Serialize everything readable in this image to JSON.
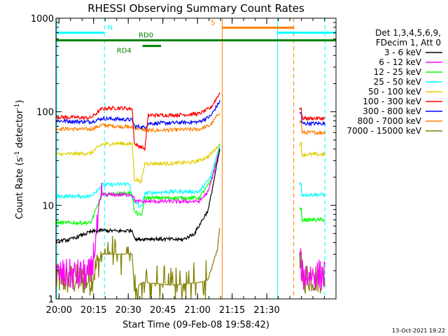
{
  "chart_data": {
    "type": "line",
    "title": "RHESSI Observing Summary Count Rates",
    "xlabel": "Start Time (09-Feb-08 19:58:42)",
    "ylabel": "Count Rate (s",
    "ylabel_sup1": "-1",
    "ylabel_mid": " detector",
    "ylabel_sup2": "-1",
    "ylabel_end": ")",
    "yscale": "log",
    "ylim": [
      1,
      1000
    ],
    "xlim": [
      0,
      121.3
    ],
    "x_unit": "minutes after 19:58:42",
    "x_ticks": [
      {
        "x": 1.3,
        "label": "20:00"
      },
      {
        "x": 16.3,
        "label": "20:15"
      },
      {
        "x": 31.3,
        "label": "20:30"
      },
      {
        "x": 46.3,
        "label": "20:45"
      },
      {
        "x": 61.3,
        "label": "21:00"
      },
      {
        "x": 76.3,
        "label": "21:15"
      },
      {
        "x": 91.3,
        "label": "21:30"
      }
    ],
    "y_ticks": [
      {
        "y": 1,
        "label": "1"
      },
      {
        "y": 10,
        "label": "10"
      },
      {
        "y": 100,
        "label": "100"
      },
      {
        "y": 1000,
        "label": "1000"
      }
    ],
    "grid": false,
    "legend_header": [
      "Det 1,3,4,5,6,9,",
      "FDecim 1, Att 0"
    ],
    "legend_position": "right",
    "series": [
      {
        "name": "3 - 6 keV",
        "color": "#000000",
        "points": [
          [
            0,
            4.1
          ],
          [
            6,
            4.3
          ],
          [
            15,
            5.2
          ],
          [
            20,
            5.4
          ],
          [
            27,
            5.3
          ],
          [
            33,
            5.4
          ],
          [
            34.5,
            4.3
          ],
          [
            40,
            4.4
          ],
          [
            55,
            4.3
          ],
          [
            60,
            5
          ],
          [
            66,
            9
          ],
          [
            71,
            40
          ]
        ]
      },
      {
        "name": "6 - 12 keV",
        "color": "#ff00ff",
        "points": [
          [
            0,
            1.8
          ],
          [
            15,
            1.8
          ],
          [
            20,
            13
          ],
          [
            33,
            13
          ],
          [
            34.5,
            11
          ],
          [
            45,
            11
          ],
          [
            55,
            11
          ],
          [
            62,
            11
          ],
          [
            66,
            14
          ],
          [
            71,
            40
          ]
        ]
      },
      {
        "name": "12 - 25 keV",
        "color": "#00ff00",
        "points": [
          [
            0,
            6.5
          ],
          [
            15,
            6.5
          ],
          [
            20,
            13
          ],
          [
            33,
            13.5
          ],
          [
            34,
            8.5
          ],
          [
            37,
            7.7
          ],
          [
            38.5,
            12
          ],
          [
            50,
            12
          ],
          [
            62,
            12
          ],
          [
            67,
            18
          ],
          [
            71,
            40
          ]
        ]
      },
      {
        "name": "25 - 50 keV",
        "color": "#00ffff",
        "points": [
          [
            0,
            12.5
          ],
          [
            15,
            12.5
          ],
          [
            20,
            16.5
          ],
          [
            32,
            17
          ],
          [
            33,
            11.5
          ],
          [
            37,
            9.5
          ],
          [
            38.5,
            13.5
          ],
          [
            50,
            14
          ],
          [
            62,
            14
          ],
          [
            67,
            20
          ],
          [
            71,
            45
          ]
        ]
      },
      {
        "name": "50 - 100 keV",
        "color": "#e0d000",
        "points": [
          [
            0,
            35
          ],
          [
            15,
            36
          ],
          [
            20,
            45
          ],
          [
            27,
            46
          ],
          [
            33,
            45
          ],
          [
            34,
            19
          ],
          [
            37,
            18
          ],
          [
            38.5,
            28
          ],
          [
            50,
            28
          ],
          [
            60,
            29
          ],
          [
            66,
            33
          ],
          [
            71,
            45
          ]
        ]
      },
      {
        "name": "100 - 300 keV",
        "color": "#ff0000",
        "points": [
          [
            0,
            88
          ],
          [
            15,
            86
          ],
          [
            20,
            108
          ],
          [
            27,
            110
          ],
          [
            33,
            108
          ],
          [
            34,
            45
          ],
          [
            37,
            42
          ],
          [
            38.5,
            40
          ],
          [
            40,
            92
          ],
          [
            50,
            92
          ],
          [
            62,
            95
          ],
          [
            67,
            110
          ],
          [
            71,
            160
          ]
        ]
      },
      {
        "name": "300 - 800 keV",
        "color": "#0000ff",
        "points": [
          [
            0,
            80
          ],
          [
            15,
            78
          ],
          [
            20,
            85
          ],
          [
            33,
            82
          ],
          [
            34,
            70
          ],
          [
            38.5,
            68
          ],
          [
            40,
            75
          ],
          [
            50,
            76
          ],
          [
            62,
            78
          ],
          [
            67,
            90
          ],
          [
            71,
            130
          ]
        ]
      },
      {
        "name": "800 - 7000 keV",
        "color": "#ff8000",
        "points": [
          [
            0,
            66
          ],
          [
            15,
            65
          ],
          [
            20,
            72
          ],
          [
            27,
            70
          ],
          [
            33,
            68
          ],
          [
            37,
            65
          ],
          [
            40,
            63
          ],
          [
            50,
            64
          ],
          [
            62,
            65
          ],
          [
            67,
            72
          ],
          [
            71,
            100
          ]
        ]
      },
      {
        "name": "7000 - 15000 keV",
        "color": "#808000",
        "points": [
          [
            0,
            1.6
          ],
          [
            15,
            1.6
          ],
          [
            20,
            3
          ],
          [
            27,
            3
          ],
          [
            33,
            3
          ],
          [
            34,
            1.2
          ],
          [
            37,
            1.5
          ],
          [
            38.5,
            1.5
          ],
          [
            50,
            1.4
          ],
          [
            62,
            1.5
          ],
          [
            66,
            1.6
          ],
          [
            70,
            3.5
          ],
          [
            71,
            6
          ]
        ]
      }
    ],
    "segment2": {
      "x_start": 105.5,
      "x_end": 116.5,
      "ratios": {
        "3 - 6 keV": null,
        "6 - 12 keV": 1.8,
        "12 - 25 keV": 7,
        "25 - 50 keV": 13,
        "50 - 100 keV": 35,
        "100 - 300 keV": 85,
        "300 - 800 keV": 75,
        "800 - 7000 keV": 60,
        "7000 - 15000 keV": 1.7
      }
    },
    "flag_bars": [
      {
        "label": "N",
        "color": "#00ffff",
        "y": 700,
        "segments": [
          [
            0,
            21
          ],
          [
            96,
            121.3
          ]
        ],
        "label_x": 23.5
      },
      {
        "label": "S",
        "color": "#ff8000",
        "y": 790,
        "segments": [
          [
            72,
            103
          ]
        ],
        "label_x": 68
      },
      {
        "label": "RD0",
        "color": "#008000",
        "y": 580,
        "segments": [
          [
            0,
            121.3
          ]
        ],
        "label_x": 39
      },
      {
        "label": "RD4",
        "color": "#008000",
        "y": 505,
        "segments": [
          [
            37.5,
            45.5
          ]
        ],
        "label_x": 29.5
      }
    ],
    "vertical_markers": [
      {
        "x": 0.3,
        "style": "solid",
        "color": "#00ffff"
      },
      {
        "x": 21,
        "style": "dashed",
        "color": "#00ffff"
      },
      {
        "x": 72,
        "style": "solid",
        "color": "#ff8000"
      },
      {
        "x": 96,
        "style": "solid",
        "color": "#00ffff"
      },
      {
        "x": 103,
        "style": "dashed",
        "color": "#ff8000"
      },
      {
        "x": 116.5,
        "style": "dashed",
        "color": "#00ffff"
      }
    ]
  },
  "footer": {
    "timestamp": "13-Oct-2021 19:22"
  }
}
